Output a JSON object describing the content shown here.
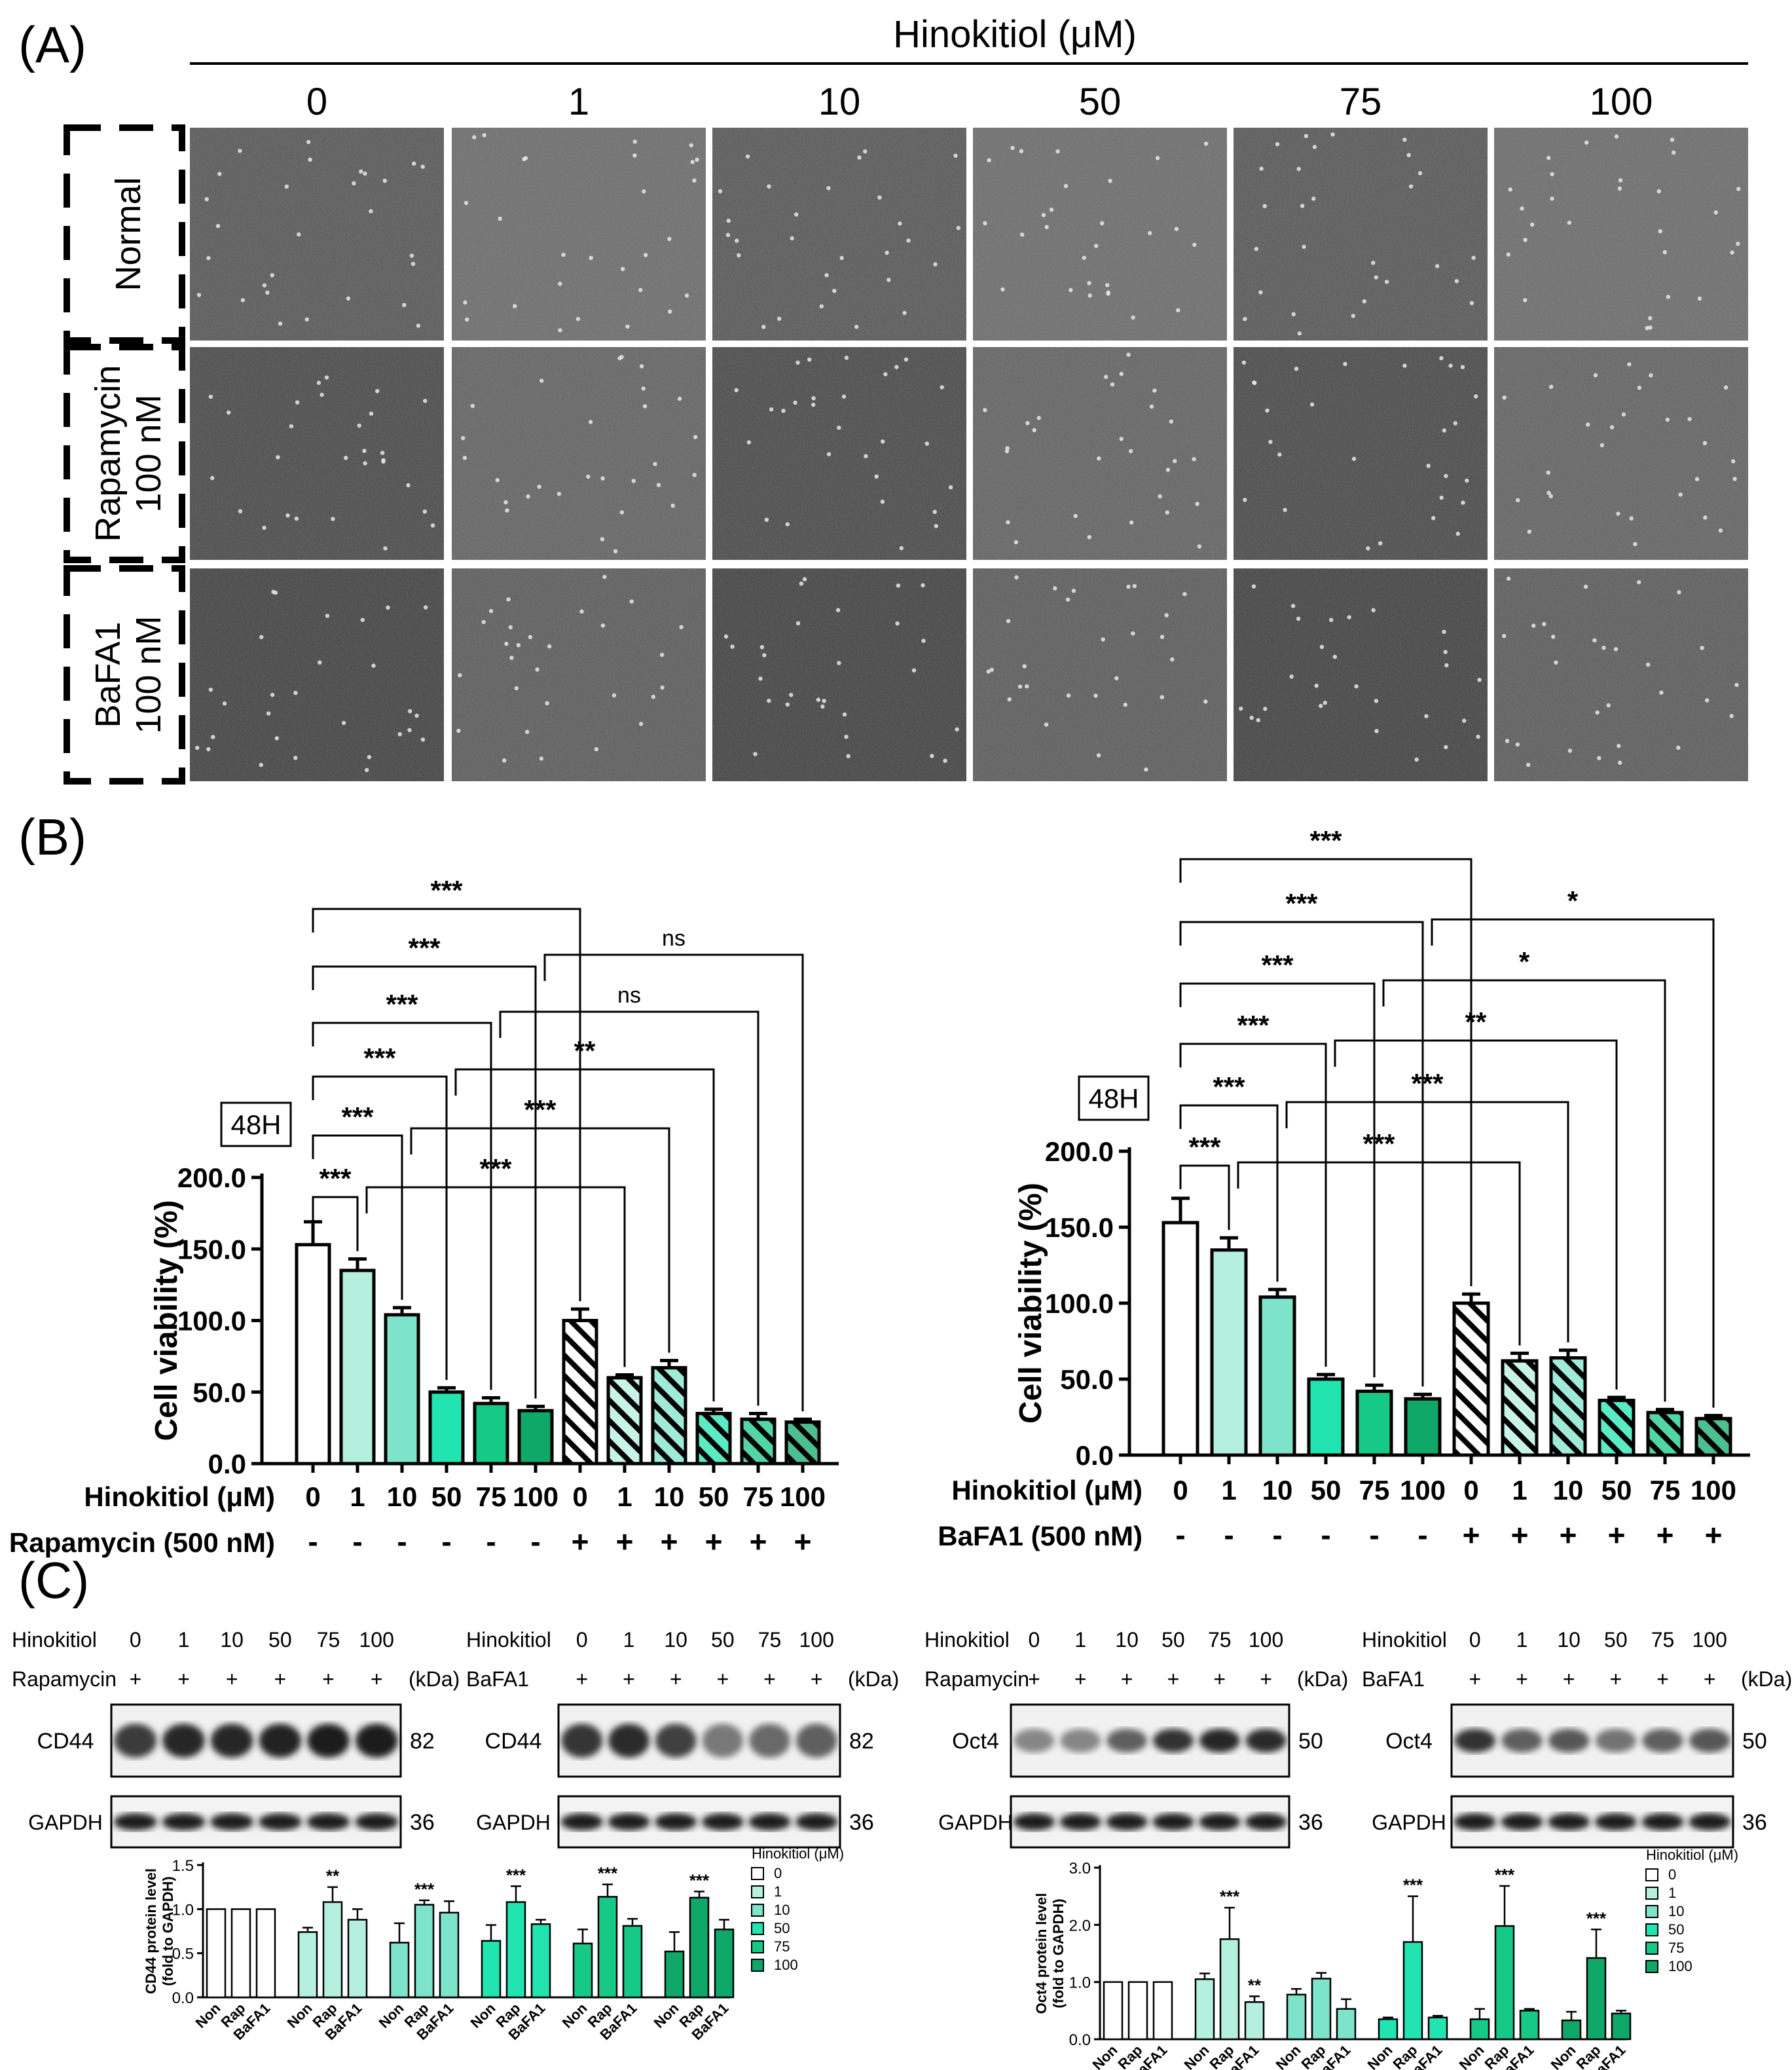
{
  "colors": {
    "c0": "#ffffff",
    "c1": "#b5f0df",
    "c10": "#7ee3cb",
    "c50": "#22e4b1",
    "c75": "#17c987",
    "c100": "#10a869"
  },
  "panel_a": {
    "label": "(A)",
    "title": "Hinokitiol (μM)",
    "columns": [
      "0",
      "1",
      "10",
      "50",
      "75",
      "100"
    ],
    "rows": [
      [
        "Normal"
      ],
      [
        "Rapamycin",
        "100 nM"
      ],
      [
        "BaFA1",
        "100 nM"
      ]
    ]
  },
  "panel_b": {
    "label": "(B)"
  },
  "panel_c": {
    "label": "(C)"
  },
  "chart_data": [
    {
      "type": "bar",
      "badge": "48H",
      "ylabel": "Cell viability (%)",
      "ylim": [
        0,
        200
      ],
      "yticks": [
        "0.0",
        "50.0",
        "100.0",
        "150.0",
        "200.0"
      ],
      "row1_label": "Hinokitiol (μM)",
      "row2_label": "Rapamycin (500 nM)",
      "categories": [
        "0",
        "1",
        "10",
        "50",
        "75",
        "100",
        "0",
        "1",
        "10",
        "50",
        "75",
        "100"
      ],
      "treatment": [
        "-",
        "-",
        "-",
        "-",
        "-",
        "-",
        "+",
        "+",
        "+",
        "+",
        "+",
        "+"
      ],
      "values": [
        153,
        135,
        104,
        50,
        42,
        37,
        100,
        60,
        67,
        35,
        31,
        29
      ],
      "errors": [
        16,
        8,
        5,
        3,
        4,
        3,
        8,
        2,
        5,
        3,
        4,
        2
      ],
      "brackets": [
        {
          "from": 0,
          "to": 1,
          "label": "***"
        },
        {
          "from": 0,
          "to": 2,
          "label": "***"
        },
        {
          "from": 0,
          "to": 3,
          "label": "***"
        },
        {
          "from": 0,
          "to": 4,
          "label": "***"
        },
        {
          "from": 0,
          "to": 5,
          "label": "***"
        },
        {
          "from": 0,
          "to": 6,
          "label": "***"
        },
        {
          "from": 1,
          "to": 7,
          "label": "***"
        },
        {
          "from": 2,
          "to": 8,
          "label": "***"
        },
        {
          "from": 3,
          "to": 9,
          "label": "**"
        },
        {
          "from": 4,
          "to": 10,
          "label": "ns"
        },
        {
          "from": 5,
          "to": 11,
          "label": "ns"
        }
      ]
    },
    {
      "type": "bar",
      "badge": "48H",
      "ylabel": "Cell viability (%)",
      "ylim": [
        0,
        200
      ],
      "yticks": [
        "0.0",
        "50.0",
        "100.0",
        "150.0",
        "200.0"
      ],
      "row1_label": "Hinokitiol (μM)",
      "row2_label": "BaFA1 (500 nM)",
      "categories": [
        "0",
        "1",
        "10",
        "50",
        "75",
        "100",
        "0",
        "1",
        "10",
        "50",
        "75",
        "100"
      ],
      "treatment": [
        "-",
        "-",
        "-",
        "-",
        "-",
        "-",
        "+",
        "+",
        "+",
        "+",
        "+",
        "+"
      ],
      "values": [
        153,
        135,
        104,
        50,
        42,
        37,
        100,
        62,
        64,
        36,
        28,
        24
      ],
      "errors": [
        16,
        8,
        5,
        3,
        4,
        3,
        6,
        5,
        5,
        2,
        2,
        2
      ],
      "brackets": [
        {
          "from": 0,
          "to": 1,
          "label": "***"
        },
        {
          "from": 0,
          "to": 2,
          "label": "***"
        },
        {
          "from": 0,
          "to": 3,
          "label": "***"
        },
        {
          "from": 0,
          "to": 4,
          "label": "***"
        },
        {
          "from": 0,
          "to": 5,
          "label": "***"
        },
        {
          "from": 0,
          "to": 6,
          "label": "***"
        },
        {
          "from": 1,
          "to": 7,
          "label": "***"
        },
        {
          "from": 2,
          "to": 8,
          "label": "***"
        },
        {
          "from": 3,
          "to": 9,
          "label": "**"
        },
        {
          "from": 4,
          "to": 10,
          "label": "*"
        },
        {
          "from": 5,
          "to": 11,
          "label": "*"
        }
      ]
    },
    {
      "type": "bar",
      "ylabel": [
        "CD44 protein level",
        "(fold to GAPDH)"
      ],
      "ylim": [
        0,
        1.5
      ],
      "yticks": [
        "0.0",
        "0.5",
        "1.0",
        "1.5"
      ],
      "groups": [
        "0",
        "1",
        "10",
        "50",
        "75",
        "100"
      ],
      "sublabels": [
        "Non",
        "Rap",
        "BaFA1"
      ],
      "values": [
        [
          1.0,
          1.0,
          1.0
        ],
        [
          0.74,
          1.08,
          0.88
        ],
        [
          0.62,
          1.05,
          0.96
        ],
        [
          0.64,
          1.08,
          0.83
        ],
        [
          0.61,
          1.14,
          0.81
        ],
        [
          0.52,
          1.13,
          0.77
        ]
      ],
      "errors": [
        [
          0,
          0,
          0
        ],
        [
          0.05,
          0.17,
          0.12
        ],
        [
          0.22,
          0.05,
          0.13
        ],
        [
          0.18,
          0.18,
          0.05
        ],
        [
          0.16,
          0.14,
          0.08
        ],
        [
          0.22,
          0.07,
          0.11
        ]
      ],
      "stars": [
        [
          "",
          "",
          ""
        ],
        [
          "",
          "**",
          ""
        ],
        [
          "",
          "***",
          ""
        ],
        [
          "",
          "***",
          ""
        ],
        [
          "",
          "***",
          ""
        ],
        [
          "",
          "***",
          ""
        ]
      ],
      "legend_title": "Hinokitiol (μM)",
      "legend": [
        "0",
        "1",
        "10",
        "50",
        "75",
        "100"
      ]
    },
    {
      "type": "bar",
      "ylabel": [
        "Oct4 protein level",
        "(fold to GAPDH)"
      ],
      "ylim": [
        0,
        3.0
      ],
      "yticks": [
        "0.0",
        "1.0",
        "2.0",
        "3.0"
      ],
      "groups": [
        "0",
        "1",
        "10",
        "50",
        "75",
        "100"
      ],
      "sublabels": [
        "Non",
        "Rap",
        "BaFA1"
      ],
      "values": [
        [
          1.0,
          1.0,
          1.0
        ],
        [
          1.05,
          1.75,
          0.65
        ],
        [
          0.78,
          1.06,
          0.53
        ],
        [
          0.35,
          1.7,
          0.38
        ],
        [
          0.35,
          1.98,
          0.5
        ],
        [
          0.33,
          1.42,
          0.45
        ]
      ],
      "errors": [
        [
          0,
          0,
          0
        ],
        [
          0.1,
          0.55,
          0.1
        ],
        [
          0.1,
          0.1,
          0.17
        ],
        [
          0.03,
          0.8,
          0.03
        ],
        [
          0.18,
          0.7,
          0.03
        ],
        [
          0.15,
          0.5,
          0.05
        ]
      ],
      "stars": [
        [
          "",
          "",
          ""
        ],
        [
          "",
          "***",
          "**"
        ],
        [
          "",
          "",
          ""
        ],
        [
          "",
          "***",
          ""
        ],
        [
          "",
          "***",
          ""
        ],
        [
          "",
          "***",
          ""
        ]
      ],
      "legend_title": "Hinokitiol (μM)",
      "legend": [
        "0",
        "1",
        "10",
        "50",
        "75",
        "100"
      ]
    }
  ],
  "blots": [
    {
      "hinokitiol_label": "Hinokitiol",
      "treatment_label": "Rapamycin",
      "kda_label": "(kDa)",
      "doses": [
        "0",
        "1",
        "10",
        "50",
        "75",
        "100"
      ],
      "signs": [
        "+",
        "+",
        "+",
        "+",
        "+",
        "+"
      ],
      "protein": "CD44",
      "protein_kda": "82",
      "loading": "GAPDH",
      "loading_kda": "36",
      "band_strength": [
        0.75,
        0.85,
        0.85,
        0.88,
        0.9,
        0.9
      ],
      "band_width": 0.9
    },
    {
      "hinokitiol_label": "Hinokitiol",
      "treatment_label": "BaFA1",
      "kda_label": "(kDa)",
      "doses": [
        "0",
        "1",
        "10",
        "50",
        "75",
        "100"
      ],
      "signs": [
        "+",
        "+",
        "+",
        "+",
        "+",
        "+"
      ],
      "protein": "CD44",
      "protein_kda": "82",
      "loading": "GAPDH",
      "loading_kda": "36",
      "band_strength": [
        0.78,
        0.82,
        0.72,
        0.42,
        0.5,
        0.55
      ],
      "band_width": 0.9
    },
    {
      "hinokitiol_label": "Hinokitiol",
      "treatment_label": "Rapamycin",
      "kda_label": "(kDa)",
      "doses": [
        "0",
        "1",
        "10",
        "50",
        "75",
        "100"
      ],
      "signs": [
        "+",
        "+",
        "+",
        "+",
        "+",
        "+"
      ],
      "protein": "Oct4",
      "protein_kda": "50",
      "loading": "GAPDH",
      "loading_kda": "36",
      "band_strength": [
        0.35,
        0.35,
        0.55,
        0.8,
        0.85,
        0.82
      ],
      "band_width": 0.55
    },
    {
      "hinokitiol_label": "Hinokitiol",
      "treatment_label": "BaFA1",
      "kda_label": "(kDa)",
      "doses": [
        "0",
        "1",
        "10",
        "50",
        "75",
        "100"
      ],
      "signs": [
        "+",
        "+",
        "+",
        "+",
        "+",
        "+"
      ],
      "protein": "Oct4",
      "protein_kda": "50",
      "loading": "GAPDH",
      "loading_kda": "36",
      "band_strength": [
        0.8,
        0.55,
        0.6,
        0.45,
        0.55,
        0.6
      ],
      "band_width": 0.55
    }
  ]
}
